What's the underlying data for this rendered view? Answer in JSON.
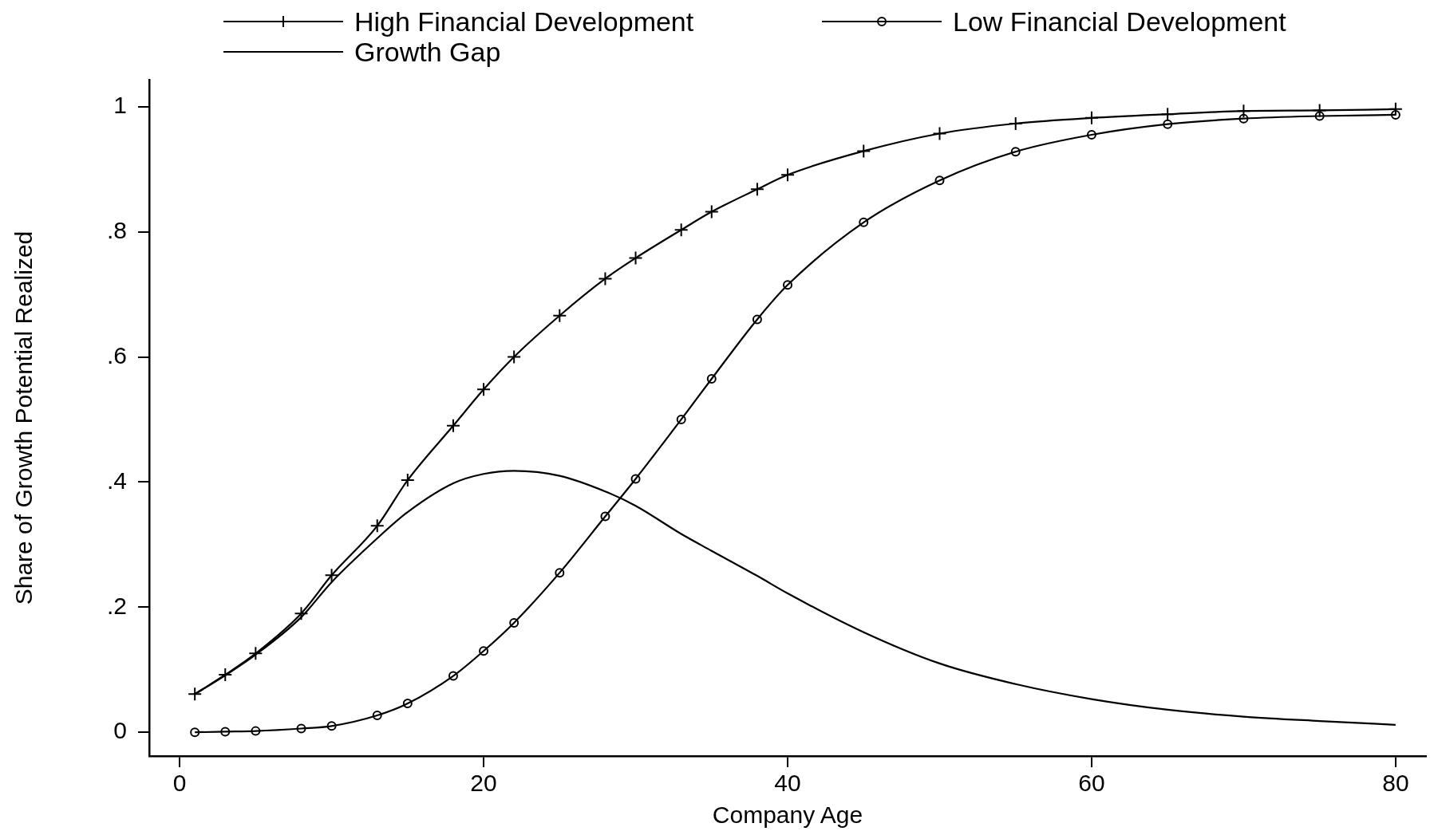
{
  "chart_data": {
    "type": "line",
    "xlabel": "Company Age",
    "ylabel": "Share of Growth Potential Realized",
    "xlim": [
      -2,
      82
    ],
    "xticks": [
      0,
      20,
      40,
      60,
      80
    ],
    "ylim": [
      -0.038,
      1.043
    ],
    "yticks": [
      {
        "value": 0,
        "label": "0"
      },
      {
        "value": 0.2,
        "label": ".2"
      },
      {
        "value": 0.4,
        "label": ".4"
      },
      {
        "value": 0.6,
        "label": ".6"
      },
      {
        "value": 0.8,
        "label": ".8"
      },
      {
        "value": 1,
        "label": "1"
      }
    ],
    "grid": false,
    "legend": "top",
    "line_style": "solid",
    "series": [
      {
        "name": "High Financial Development",
        "color": "#000000",
        "marker": "cross",
        "x": [
          1,
          3,
          5,
          8,
          10,
          13,
          15,
          18,
          20,
          22,
          25,
          28,
          30,
          33,
          35,
          38,
          40,
          45,
          50,
          55,
          60,
          65,
          70,
          75,
          80
        ],
        "values": [
          0.061,
          0.092,
          0.126,
          0.19,
          0.251,
          0.33,
          0.403,
          0.49,
          0.548,
          0.6,
          0.666,
          0.725,
          0.758,
          0.803,
          0.832,
          0.868,
          0.891,
          0.929,
          0.957,
          0.973,
          0.982,
          0.988,
          0.993,
          0.994,
          0.996
        ]
      },
      {
        "name": "Low Financial Development",
        "color": "#000000",
        "marker": "circle",
        "x": [
          1,
          3,
          5,
          8,
          10,
          13,
          15,
          18,
          20,
          22,
          25,
          28,
          30,
          33,
          35,
          38,
          40,
          45,
          50,
          55,
          60,
          65,
          70,
          75,
          80
        ],
        "values": [
          0,
          0.001,
          0.002,
          0.006,
          0.01,
          0.027,
          0.046,
          0.09,
          0.13,
          0.175,
          0.255,
          0.345,
          0.405,
          0.5,
          0.565,
          0.66,
          0.715,
          0.815,
          0.882,
          0.928,
          0.955,
          0.972,
          0.981,
          0.985,
          0.987
        ]
      },
      {
        "name": "Growth Gap",
        "color": "#000000",
        "marker": "none",
        "x": [
          1,
          3,
          5,
          8,
          10,
          13,
          15,
          18,
          20,
          22,
          25,
          28,
          30,
          33,
          35,
          38,
          40,
          45,
          50,
          55,
          60,
          65,
          70,
          75,
          80
        ],
        "values": [
          0.061,
          0.091,
          0.124,
          0.184,
          0.24,
          0.31,
          0.352,
          0.398,
          0.413,
          0.418,
          0.41,
          0.385,
          0.362,
          0.317,
          0.29,
          0.25,
          0.222,
          0.16,
          0.11,
          0.077,
          0.053,
          0.036,
          0.025,
          0.018,
          0.012
        ]
      }
    ]
  }
}
